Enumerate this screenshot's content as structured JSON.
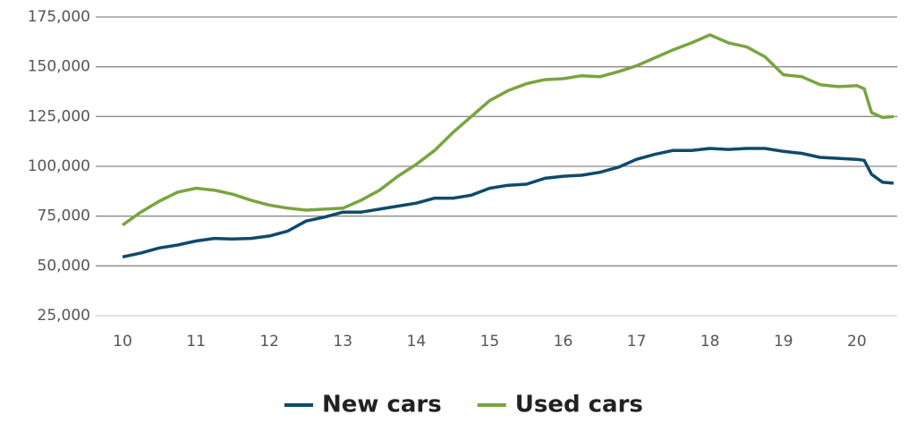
{
  "chart_data": {
    "type": "line",
    "x": [
      10,
      10.25,
      10.5,
      10.75,
      11,
      11.25,
      11.5,
      11.75,
      12,
      12.25,
      12.5,
      12.75,
      13,
      13.25,
      13.5,
      13.75,
      14,
      14.25,
      14.5,
      14.75,
      15,
      15.25,
      15.5,
      15.75,
      16,
      16.25,
      16.5,
      16.75,
      17,
      17.25,
      17.5,
      17.75,
      18,
      18.25,
      18.5,
      18.75,
      19,
      19.25,
      19.5,
      19.75,
      20,
      20.1,
      20.2,
      20.35,
      20.5
    ],
    "series": [
      {
        "name": "New cars",
        "color": "#0f4a6b",
        "values": [
          54500,
          56500,
          59000,
          60500,
          62500,
          63800,
          63500,
          63800,
          65000,
          67500,
          72500,
          74500,
          77000,
          77000,
          78500,
          80000,
          81500,
          84000,
          84000,
          85500,
          89000,
          90500,
          91000,
          94000,
          95000,
          95500,
          97000,
          99500,
          103500,
          106000,
          108000,
          108000,
          109000,
          108500,
          109000,
          109000,
          107500,
          106500,
          104500,
          104000,
          103500,
          103000,
          96000,
          92000,
          91500
        ]
      },
      {
        "name": "Used cars",
        "color": "#7aa43f",
        "values": [
          70500,
          77000,
          82500,
          87000,
          89000,
          88000,
          86000,
          83000,
          80500,
          79000,
          78000,
          78500,
          79000,
          83000,
          88000,
          95000,
          101000,
          108000,
          117000,
          125000,
          133000,
          138000,
          141500,
          143500,
          144000,
          145500,
          145000,
          147500,
          150500,
          154500,
          158500,
          162000,
          166000,
          162000,
          160000,
          155000,
          146000,
          145000,
          141000,
          140000,
          140500,
          139000,
          127000,
          124500,
          125000
        ]
      }
    ],
    "xlim": [
      10,
      20.55
    ],
    "xticks": [
      10,
      11,
      12,
      13,
      14,
      15,
      16,
      17,
      18,
      19,
      20
    ],
    "ylim": [
      25000,
      175000
    ],
    "yticks": [
      {
        "value": 25000,
        "label": "25,000"
      },
      {
        "value": 50000,
        "label": "50,000"
      },
      {
        "value": 75000,
        "label": "75,000"
      },
      {
        "value": 100000,
        "label": "100,000"
      },
      {
        "value": 125000,
        "label": "125,000"
      },
      {
        "value": 150000,
        "label": "150,000"
      },
      {
        "value": 175000,
        "label": "175,000"
      }
    ],
    "grid": true,
    "legend": "bottom"
  }
}
